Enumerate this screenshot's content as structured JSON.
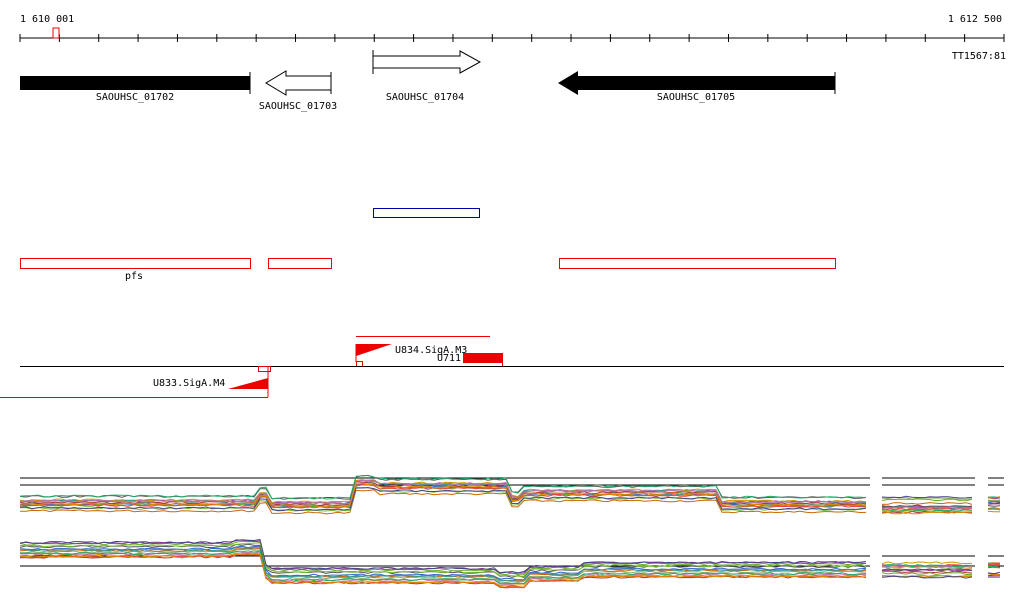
{
  "ruler": {
    "start_label": "1 610 001",
    "end_label": "1 612 500",
    "track_label": "TT1567:81"
  },
  "genes": [
    {
      "label": "SAOUHSC_01702"
    },
    {
      "label": "SAOUHSC_01703"
    },
    {
      "label": "SAOUHSC_01704"
    },
    {
      "label": "SAOUHSC_01705"
    }
  ],
  "annotations": {
    "operon_label": "pfs"
  },
  "features": [
    {
      "label": "U834.SigA.M3"
    },
    {
      "label": "U711"
    },
    {
      "label": "U833.SigA.M4"
    }
  ]
}
